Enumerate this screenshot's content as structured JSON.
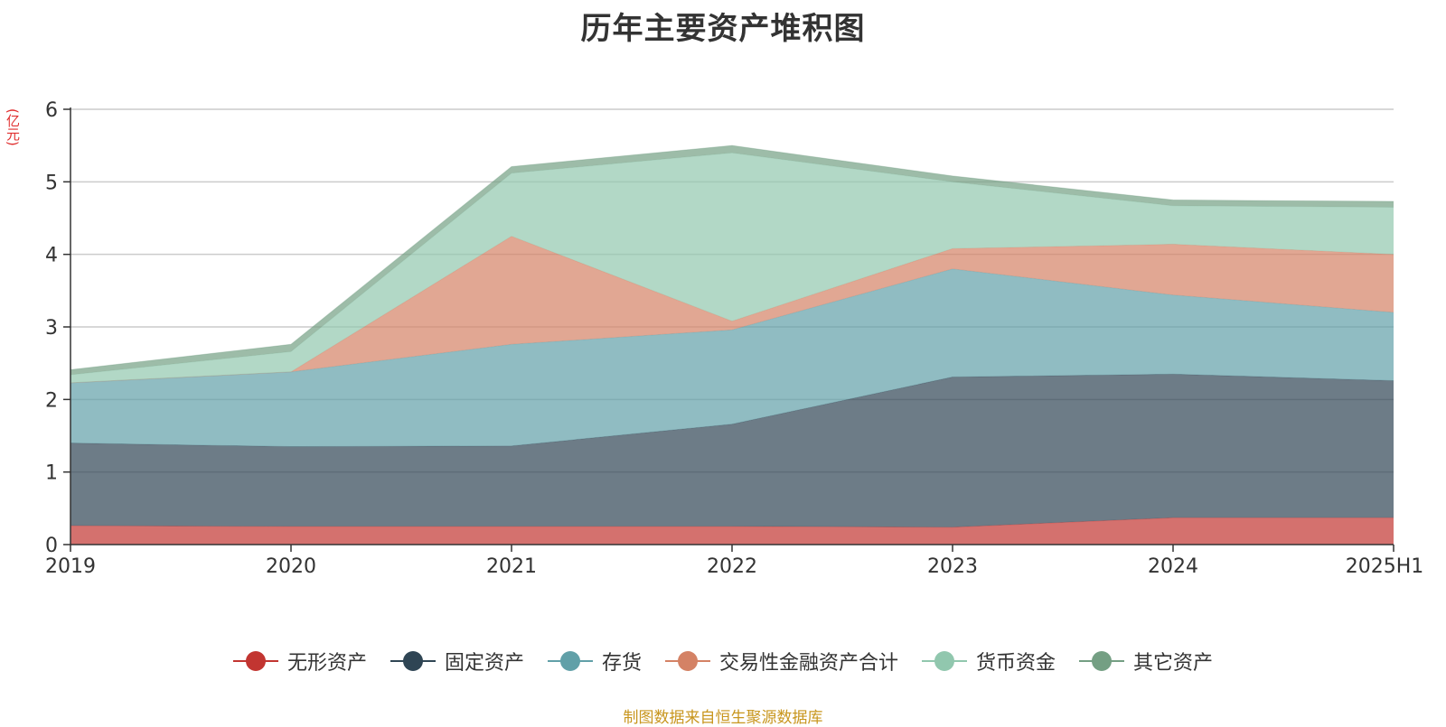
{
  "chart_data": {
    "type": "area",
    "stacked": true,
    "title": "历年主要资产堆积图",
    "ylabel": "(亿元)",
    "xlabel": "",
    "categories": [
      "2019",
      "2020",
      "2021",
      "2022",
      "2023",
      "2024",
      "2025H1"
    ],
    "ylim": [
      0,
      6
    ],
    "yticks": [
      0,
      1,
      2,
      3,
      4,
      5,
      6
    ],
    "grid": true,
    "legend_position": "bottom",
    "series": [
      {
        "name": "无形资产",
        "color": "#c23531",
        "values": [
          0.26,
          0.25,
          0.25,
          0.25,
          0.24,
          0.37,
          0.37
        ]
      },
      {
        "name": "固定资产",
        "color": "#2f4554",
        "values": [
          1.14,
          1.1,
          1.11,
          1.41,
          2.07,
          1.98,
          1.89
        ]
      },
      {
        "name": "存货",
        "color": "#61a0a8",
        "values": [
          0.83,
          1.03,
          1.4,
          1.3,
          1.49,
          1.09,
          0.94
        ]
      },
      {
        "name": "交易性金融资产合计",
        "color": "#d48265",
        "values": [
          0.0,
          0.0,
          1.49,
          0.12,
          0.28,
          0.7,
          0.8
        ]
      },
      {
        "name": "货币资金",
        "color": "#91c7ae",
        "values": [
          0.11,
          0.28,
          0.87,
          2.32,
          0.92,
          0.53,
          0.65
        ]
      },
      {
        "name": "其它资产",
        "color": "#749f83",
        "values": [
          0.07,
          0.1,
          0.09,
          0.1,
          0.08,
          0.08,
          0.08
        ]
      }
    ]
  },
  "source_note": "制图数据来自恒生聚源数据库"
}
